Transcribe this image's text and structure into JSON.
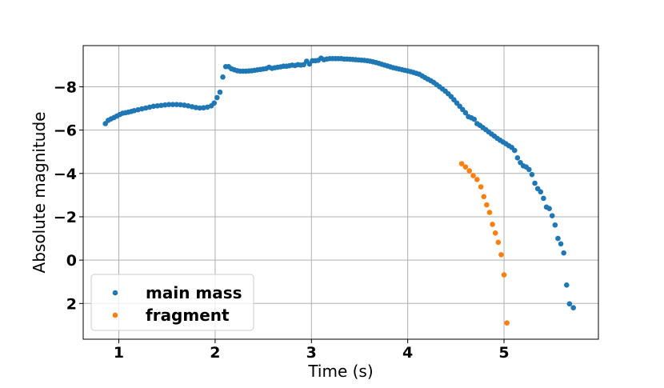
{
  "chart_data": {
    "type": "scatter",
    "xlabel": "Time (s)",
    "ylabel": "Absolute magnitude",
    "xlim": [
      0.63,
      5.98
    ],
    "ylim": [
      3.65,
      -9.9
    ],
    "y_inverted": true,
    "xticks": [
      1,
      2,
      3,
      4,
      5
    ],
    "xtick_labels": [
      "1",
      "2",
      "3",
      "4",
      "5"
    ],
    "yticks": [
      -8,
      -6,
      -4,
      -2,
      0,
      2
    ],
    "ytick_labels": [
      "−8",
      "−6",
      "−4",
      "−2",
      "0",
      "2"
    ],
    "grid": true,
    "legend_position": "lower-left",
    "colors": {
      "main mass": "#1f77b4",
      "fragment": "#ff7f0e"
    },
    "series": [
      {
        "name": "main mass",
        "color": "#1f77b4",
        "points": [
          [
            0.86,
            -6.3
          ],
          [
            0.89,
            -6.45
          ],
          [
            0.92,
            -6.52
          ],
          [
            0.95,
            -6.58
          ],
          [
            0.98,
            -6.65
          ],
          [
            1.01,
            -6.72
          ],
          [
            1.04,
            -6.78
          ],
          [
            1.07,
            -6.8
          ],
          [
            1.1,
            -6.83
          ],
          [
            1.13,
            -6.86
          ],
          [
            1.16,
            -6.9
          ],
          [
            1.2,
            -6.94
          ],
          [
            1.24,
            -6.98
          ],
          [
            1.28,
            -7.02
          ],
          [
            1.32,
            -7.06
          ],
          [
            1.36,
            -7.1
          ],
          [
            1.4,
            -7.12
          ],
          [
            1.44,
            -7.14
          ],
          [
            1.48,
            -7.16
          ],
          [
            1.52,
            -7.18
          ],
          [
            1.56,
            -7.18
          ],
          [
            1.6,
            -7.18
          ],
          [
            1.64,
            -7.17
          ],
          [
            1.68,
            -7.15
          ],
          [
            1.72,
            -7.12
          ],
          [
            1.76,
            -7.08
          ],
          [
            1.8,
            -7.04
          ],
          [
            1.84,
            -7.02
          ],
          [
            1.88,
            -7.03
          ],
          [
            1.92,
            -7.06
          ],
          [
            1.96,
            -7.12
          ],
          [
            1.99,
            -7.25
          ],
          [
            2.02,
            -7.5
          ],
          [
            2.05,
            -7.75
          ],
          [
            2.08,
            -8.45
          ],
          [
            2.11,
            -8.93
          ],
          [
            2.14,
            -8.93
          ],
          [
            2.17,
            -8.83
          ],
          [
            2.2,
            -8.78
          ],
          [
            2.23,
            -8.74
          ],
          [
            2.26,
            -8.72
          ],
          [
            2.29,
            -8.72
          ],
          [
            2.32,
            -8.72
          ],
          [
            2.35,
            -8.73
          ],
          [
            2.38,
            -8.74
          ],
          [
            2.41,
            -8.76
          ],
          [
            2.44,
            -8.78
          ],
          [
            2.47,
            -8.8
          ],
          [
            2.5,
            -8.82
          ],
          [
            2.53,
            -8.84
          ],
          [
            2.56,
            -8.9
          ],
          [
            2.59,
            -8.85
          ],
          [
            2.62,
            -8.88
          ],
          [
            2.65,
            -8.9
          ],
          [
            2.68,
            -8.92
          ],
          [
            2.71,
            -8.95
          ],
          [
            2.74,
            -8.95
          ],
          [
            2.77,
            -8.97
          ],
          [
            2.8,
            -9.0
          ],
          [
            2.83,
            -8.98
          ],
          [
            2.86,
            -9.02
          ],
          [
            2.89,
            -9.0
          ],
          [
            2.92,
            -9.02
          ],
          [
            2.95,
            -9.18
          ],
          [
            2.98,
            -9.05
          ],
          [
            3.01,
            -9.2
          ],
          [
            3.04,
            -9.2
          ],
          [
            3.07,
            -9.22
          ],
          [
            3.1,
            -9.32
          ],
          [
            3.13,
            -9.25
          ],
          [
            3.16,
            -9.28
          ],
          [
            3.19,
            -9.3
          ],
          [
            3.22,
            -9.3
          ],
          [
            3.25,
            -9.3
          ],
          [
            3.28,
            -9.3
          ],
          [
            3.31,
            -9.3
          ],
          [
            3.34,
            -9.28
          ],
          [
            3.37,
            -9.28
          ],
          [
            3.4,
            -9.27
          ],
          [
            3.43,
            -9.26
          ],
          [
            3.46,
            -9.25
          ],
          [
            3.49,
            -9.24
          ],
          [
            3.52,
            -9.23
          ],
          [
            3.55,
            -9.22
          ],
          [
            3.58,
            -9.2
          ],
          [
            3.61,
            -9.18
          ],
          [
            3.64,
            -9.15
          ],
          [
            3.67,
            -9.12
          ],
          [
            3.7,
            -9.08
          ],
          [
            3.73,
            -9.04
          ],
          [
            3.76,
            -9.0
          ],
          [
            3.79,
            -8.96
          ],
          [
            3.82,
            -8.92
          ],
          [
            3.85,
            -8.88
          ],
          [
            3.88,
            -8.85
          ],
          [
            3.91,
            -8.82
          ],
          [
            3.94,
            -8.79
          ],
          [
            3.97,
            -8.76
          ],
          [
            4.0,
            -8.73
          ],
          [
            4.03,
            -8.7
          ],
          [
            4.06,
            -8.66
          ],
          [
            4.09,
            -8.62
          ],
          [
            4.12,
            -8.58
          ],
          [
            4.15,
            -8.5
          ],
          [
            4.18,
            -8.42
          ],
          [
            4.21,
            -8.35
          ],
          [
            4.24,
            -8.28
          ],
          [
            4.27,
            -8.2
          ],
          [
            4.3,
            -8.1
          ],
          [
            4.33,
            -8.0
          ],
          [
            4.36,
            -7.9
          ],
          [
            4.39,
            -7.8
          ],
          [
            4.42,
            -7.68
          ],
          [
            4.45,
            -7.55
          ],
          [
            4.48,
            -7.4
          ],
          [
            4.51,
            -7.25
          ],
          [
            4.54,
            -7.1
          ],
          [
            4.57,
            -6.95
          ],
          [
            4.6,
            -6.8
          ],
          [
            4.63,
            -6.62
          ],
          [
            4.66,
            -6.57
          ],
          [
            4.69,
            -6.5
          ],
          [
            4.72,
            -6.3
          ],
          [
            4.75,
            -6.22
          ],
          [
            4.78,
            -6.12
          ],
          [
            4.81,
            -6.02
          ],
          [
            4.84,
            -5.92
          ],
          [
            4.87,
            -5.82
          ],
          [
            4.9,
            -5.72
          ],
          [
            4.93,
            -5.62
          ],
          [
            4.96,
            -5.53
          ],
          [
            4.99,
            -5.45
          ],
          [
            5.02,
            -5.37
          ],
          [
            5.05,
            -5.28
          ],
          [
            5.08,
            -5.2
          ],
          [
            5.11,
            -5.06
          ],
          [
            5.14,
            -4.72
          ],
          [
            5.17,
            -4.5
          ],
          [
            5.2,
            -4.35
          ],
          [
            5.23,
            -4.3
          ],
          [
            5.26,
            -4.18
          ],
          [
            5.29,
            -3.95
          ],
          [
            5.32,
            -3.55
          ],
          [
            5.35,
            -3.3
          ],
          [
            5.38,
            -3.15
          ],
          [
            5.41,
            -2.85
          ],
          [
            5.44,
            -2.45
          ],
          [
            5.47,
            -2.38
          ],
          [
            5.5,
            -2.05
          ],
          [
            5.53,
            -1.62
          ],
          [
            5.56,
            -1.0
          ],
          [
            5.59,
            -0.75
          ],
          [
            5.62,
            -0.33
          ],
          [
            5.65,
            1.15
          ],
          [
            5.68,
            2.02
          ],
          [
            5.72,
            2.2
          ]
        ]
      },
      {
        "name": "fragment",
        "color": "#ff7f0e",
        "points": [
          [
            4.56,
            -4.45
          ],
          [
            4.6,
            -4.3
          ],
          [
            4.64,
            -4.12
          ],
          [
            4.68,
            -3.9
          ],
          [
            4.72,
            -3.72
          ],
          [
            4.76,
            -3.38
          ],
          [
            4.79,
            -2.93
          ],
          [
            4.82,
            -2.55
          ],
          [
            4.85,
            -2.2
          ],
          [
            4.88,
            -1.65
          ],
          [
            4.91,
            -1.25
          ],
          [
            4.94,
            -0.82
          ],
          [
            4.97,
            -0.25
          ],
          [
            5.0,
            0.68
          ],
          [
            5.03,
            2.9
          ]
        ]
      }
    ]
  }
}
